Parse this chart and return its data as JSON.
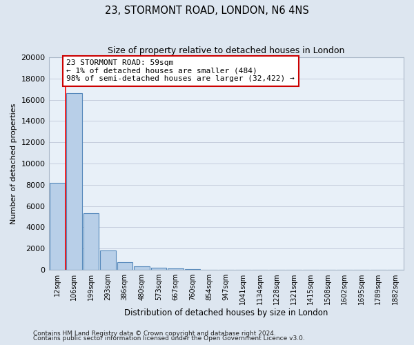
{
  "title": "23, STORMONT ROAD, LONDON, N6 4NS",
  "subtitle": "Size of property relative to detached houses in London",
  "bar_labels": [
    "12sqm",
    "106sqm",
    "199sqm",
    "293sqm",
    "386sqm",
    "480sqm",
    "573sqm",
    "667sqm",
    "760sqm",
    "854sqm",
    "947sqm",
    "1041sqm",
    "1134sqm",
    "1228sqm",
    "1321sqm",
    "1415sqm",
    "1508sqm",
    "1602sqm",
    "1695sqm",
    "1789sqm",
    "1882sqm"
  ],
  "bar_values": [
    8200,
    16600,
    5300,
    1850,
    750,
    300,
    200,
    150,
    100,
    0,
    0,
    0,
    0,
    0,
    0,
    0,
    0,
    0,
    0,
    0,
    0
  ],
  "bar_color": "#b8cfe8",
  "bar_edge_color": "#5588bb",
  "background_color": "#dde6f0",
  "plot_bg_color": "#e8f0f8",
  "ylabel": "Number of detached properties",
  "xlabel": "Distribution of detached houses by size in London",
  "ylim": [
    0,
    20000
  ],
  "yticks": [
    0,
    2000,
    4000,
    6000,
    8000,
    10000,
    12000,
    14000,
    16000,
    18000,
    20000
  ],
  "red_line_x": 0.5,
  "annotation_title": "23 STORMONT ROAD: 59sqm",
  "annotation_line1": "← 1% of detached houses are smaller (484)",
  "annotation_line2": "98% of semi-detached houses are larger (32,422) →",
  "annotation_box_facecolor": "#ffffff",
  "annotation_box_edgecolor": "#cc0000",
  "footer1": "Contains HM Land Registry data © Crown copyright and database right 2024.",
  "footer2": "Contains public sector information licensed under the Open Government Licence v3.0."
}
